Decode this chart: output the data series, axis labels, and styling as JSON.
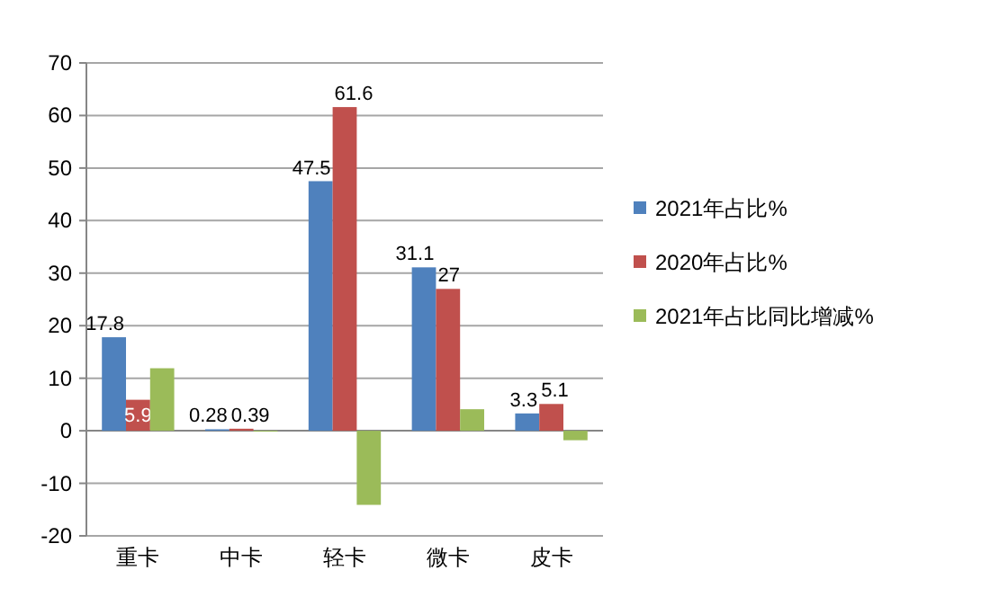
{
  "chart_data": {
    "type": "bar",
    "categories": [
      "重卡",
      "中卡",
      "轻卡",
      "微卡",
      "皮卡"
    ],
    "series": [
      {
        "name": "2021年占比%",
        "color": "#4f81bd",
        "values": [
          17.8,
          0.28,
          47.5,
          31.1,
          3.3
        ],
        "value_labels": [
          "17.8",
          "0.28",
          "47.5",
          "31.1",
          "3.3"
        ]
      },
      {
        "name": "2020年占比%",
        "color": "#c0504d",
        "values": [
          5.9,
          0.39,
          61.6,
          27,
          5.1
        ],
        "value_labels": [
          "5.9",
          "0.39",
          "61.6",
          "27",
          "5.1"
        ]
      },
      {
        "name": "2021年占比同比增减%",
        "color": "#9bbb59",
        "values": [
          11.9,
          -0.1,
          -14.1,
          4.1,
          -1.8
        ]
      }
    ],
    "ylim": [
      -20,
      70
    ],
    "yticks": [
      -20,
      -10,
      0,
      10,
      20,
      30,
      40,
      50,
      60,
      70
    ],
    "grid": "y",
    "legend": "right"
  }
}
